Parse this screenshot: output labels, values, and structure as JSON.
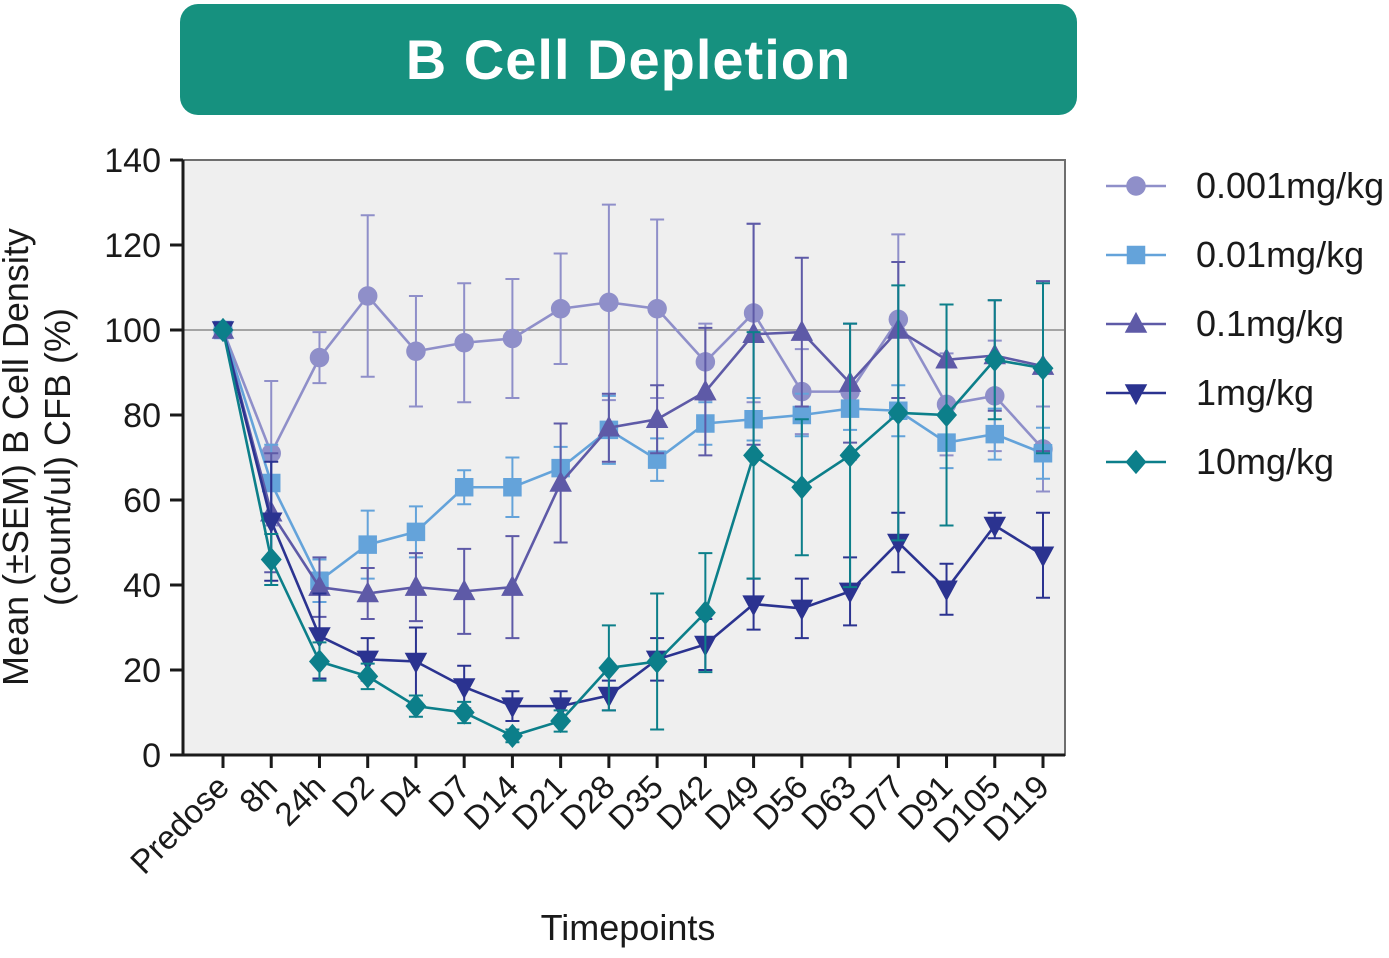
{
  "colors": {
    "banner": "#16917f",
    "plot_bg": "#efefef",
    "axis": "#1a1a1a",
    "frame": "#6e6e6e",
    "reference_line": "#8c8c8c",
    "text": "#1a1a1a"
  },
  "chart_data": {
    "type": "line",
    "title": "B Cell Depletion",
    "xlabel": "Timepoints",
    "ylabel_line1": "Mean (±SEM) B Cell Density",
    "ylabel_line2": "(count/ul)  CFB (%)",
    "categories": [
      "Predose",
      "8h",
      "24h",
      "D2",
      "D4",
      "D7",
      "D14",
      "D21",
      "D28",
      "D35",
      "D42",
      "D49",
      "D56",
      "D63",
      "D77",
      "D91",
      "D105",
      "D119"
    ],
    "ylim": [
      0,
      140
    ],
    "yticks": [
      0,
      20,
      40,
      60,
      80,
      100,
      120,
      140
    ],
    "reference_line": 100,
    "grid": false,
    "legend_position": "right",
    "series": [
      {
        "name": "0.001mg/kg",
        "marker": "circle",
        "color": "#8f8fc9",
        "values": [
          100,
          71,
          93.5,
          108,
          95,
          97,
          98,
          105,
          106.5,
          105,
          92.5,
          104,
          85.5,
          85.5,
          102.5,
          82.5,
          84.5,
          72
        ],
        "sem": [
          0,
          17,
          6,
          19,
          13,
          14,
          14,
          13,
          23,
          21,
          9,
          21,
          10,
          16,
          20,
          12,
          13,
          10
        ]
      },
      {
        "name": "0.01mg/kg",
        "marker": "square",
        "color": "#64a3da",
        "values": [
          100,
          64,
          41,
          49.5,
          52.5,
          63,
          63,
          67.5,
          76.5,
          69.5,
          78,
          79,
          80,
          81.5,
          81,
          73.5,
          75.5,
          71
        ],
        "sem": [
          0,
          9,
          5,
          8,
          6,
          4,
          7,
          5,
          8,
          5,
          5,
          5,
          5,
          5,
          6,
          6,
          6,
          6
        ]
      },
      {
        "name": "0.1mg/kg",
        "marker": "triangle-up",
        "color": "#5e5aa7",
        "values": [
          100,
          57,
          39.5,
          38,
          39.5,
          38.5,
          39.5,
          64,
          77,
          79,
          85.5,
          99,
          99.5,
          87.5,
          100,
          93,
          94,
          91.5
        ],
        "sem": [
          0,
          14,
          7,
          6,
          8,
          10,
          12,
          14,
          8,
          8,
          15,
          26,
          17.5,
          14,
          16,
          13,
          13,
          20
        ]
      },
      {
        "name": "1mg/kg",
        "marker": "triangle-down",
        "color": "#2b3390",
        "values": [
          100,
          55,
          28,
          22.5,
          22,
          16,
          11.5,
          11.5,
          14,
          22.5,
          26,
          35.5,
          34.5,
          38.5,
          50,
          39,
          54,
          47
        ],
        "sem": [
          0,
          14,
          10,
          5,
          8,
          5,
          3.5,
          3.5,
          3.5,
          5,
          6,
          6,
          7,
          8,
          7,
          6,
          3,
          10
        ]
      },
      {
        "name": "10mg/kg",
        "marker": "diamond",
        "color": "#0c7f8a",
        "values": [
          100,
          46,
          22,
          18.5,
          11.5,
          10,
          4.5,
          8,
          20.5,
          22,
          33.5,
          70.5,
          63,
          70.5,
          80.5,
          80,
          93,
          91
        ],
        "sem": [
          0,
          6,
          4.5,
          3,
          2.5,
          2.5,
          1.5,
          2.5,
          10,
          16,
          14,
          29,
          16,
          31,
          30,
          26,
          14,
          20
        ]
      }
    ]
  }
}
